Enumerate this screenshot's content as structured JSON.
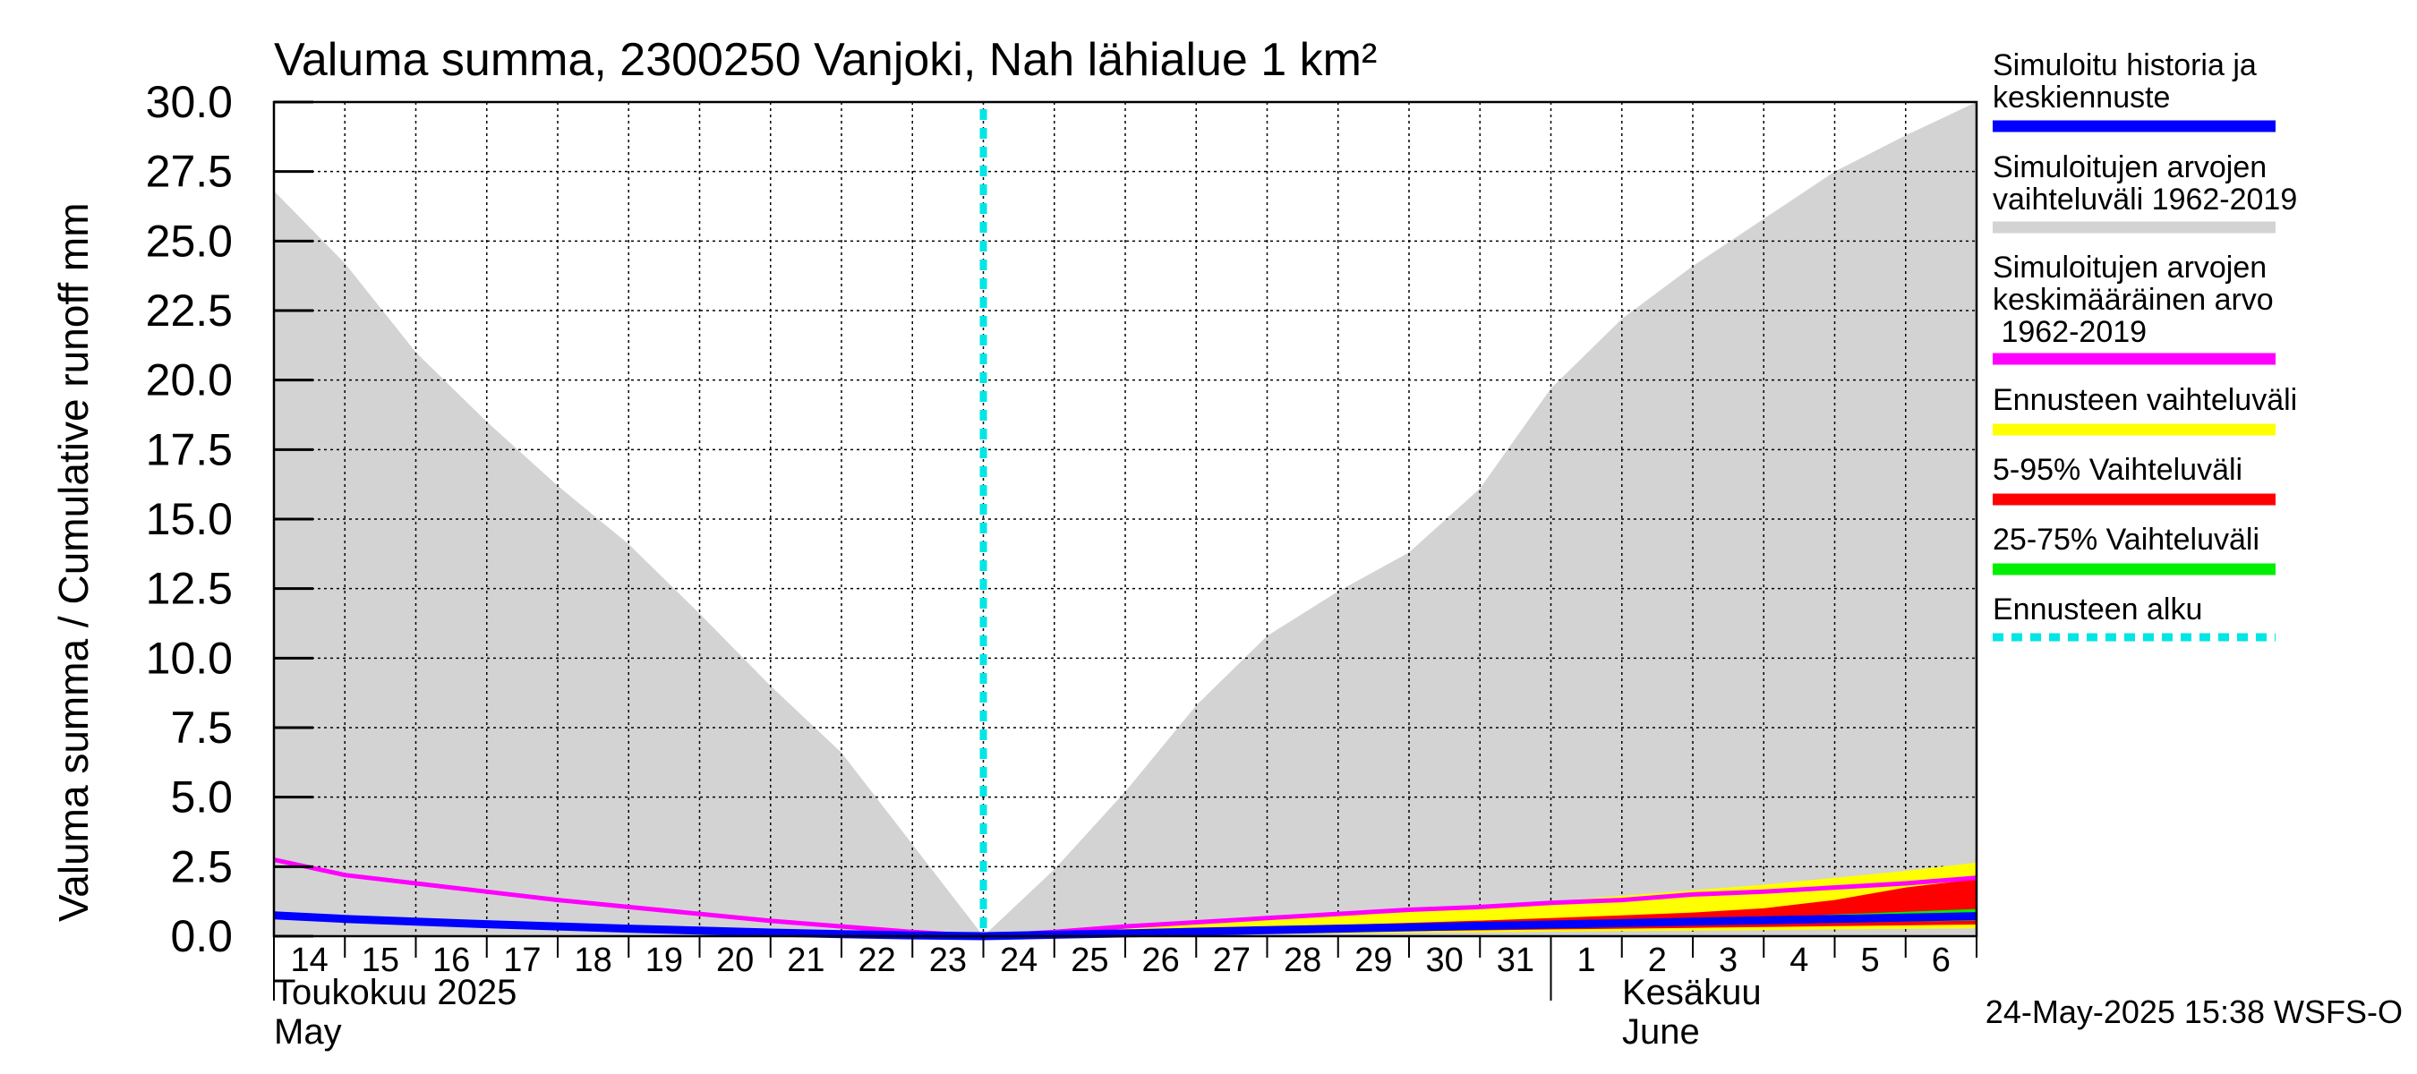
{
  "chart_data": {
    "type": "area",
    "title": "Valuma summa, 2300250 Vanjoki, Nah lähialue 1 km²",
    "ylabel": "Valuma summa / Cumulative runoff    mm",
    "ylim": [
      0,
      30
    ],
    "yticks": [
      "0.0",
      "2.5",
      "5.0",
      "7.5",
      "10.0",
      "12.5",
      "15.0",
      "17.5",
      "20.0",
      "22.5",
      "25.0",
      "27.5",
      "30.0"
    ],
    "ytick_values": [
      0,
      2.5,
      5,
      7.5,
      10,
      12.5,
      15,
      17.5,
      20,
      22.5,
      25,
      27.5,
      30
    ],
    "xlim": [
      0,
      24
    ],
    "xticks": [
      "14",
      "15",
      "16",
      "17",
      "18",
      "19",
      "20",
      "21",
      "22",
      "23",
      "24",
      "25",
      "26",
      "27",
      "28",
      "29",
      "30",
      "31",
      "1",
      "2",
      "3",
      "4",
      "5",
      "6"
    ],
    "month_labels": {
      "may_fi": "Toukokuu  2025",
      "may_en": "May",
      "june_fi": "Kesäkuu",
      "june_en": "June"
    },
    "forecast_start_day": 10,
    "x": [
      0,
      1,
      2,
      3,
      4,
      5,
      6,
      7,
      8,
      9,
      10,
      11,
      12,
      13,
      14,
      15,
      16,
      17,
      18,
      19,
      20,
      21,
      22,
      23,
      24
    ],
    "series": [
      {
        "name": "Simuloitujen arvojen vaihteluväli 1962-2019 (max)",
        "values": [
          26.8,
          24.2,
          21.0,
          18.5,
          16.2,
          14.1,
          11.6,
          9.0,
          6.6,
          3.3,
          0.0,
          2.4,
          5.2,
          8.3,
          10.8,
          12.4,
          13.8,
          16.1,
          19.7,
          22.2,
          24.1,
          25.8,
          27.5,
          28.8,
          30.0
        ]
      },
      {
        "name": "Simuloitujen arvojen vaihteluväli 1962-2019 (min)",
        "values": [
          0.0,
          0.0,
          0.0,
          0.0,
          0.0,
          0.0,
          0.0,
          0.0,
          0.0,
          0.0,
          0.0,
          0.0,
          0.0,
          0.0,
          0.0,
          0.0,
          0.0,
          0.0,
          0.0,
          0.0,
          0.0,
          0.0,
          0.0,
          0.0,
          0.0
        ]
      },
      {
        "name": "Simuloitujen arvojen keskimääräinen arvo 1962-2019",
        "values": [
          2.75,
          2.2,
          1.9,
          1.6,
          1.3,
          1.05,
          0.8,
          0.55,
          0.35,
          0.15,
          0.0,
          0.15,
          0.35,
          0.5,
          0.65,
          0.8,
          0.95,
          1.05,
          1.2,
          1.3,
          1.5,
          1.6,
          1.75,
          1.9,
          2.1
        ]
      },
      {
        "name": "Simuloitu historia ja keskiennuste",
        "values": [
          0.75,
          0.62,
          0.52,
          0.43,
          0.35,
          0.27,
          0.2,
          0.13,
          0.07,
          0.03,
          0.0,
          0.05,
          0.1,
          0.16,
          0.22,
          0.27,
          0.32,
          0.37,
          0.42,
          0.47,
          0.52,
          0.57,
          0.62,
          0.67,
          0.72
        ]
      },
      {
        "name": "Ennusteen vaihteluväli (max)",
        "values": [
          null,
          null,
          null,
          null,
          null,
          null,
          null,
          null,
          null,
          null,
          0.0,
          0.15,
          0.3,
          0.45,
          0.6,
          0.75,
          0.9,
          1.05,
          1.25,
          1.45,
          1.65,
          1.85,
          2.1,
          2.35,
          2.65
        ]
      },
      {
        "name": "Ennusteen vaihteluväli (min)",
        "values": [
          null,
          null,
          null,
          null,
          null,
          null,
          null,
          null,
          null,
          null,
          0.0,
          0.02,
          0.04,
          0.06,
          0.08,
          0.1,
          0.12,
          0.14,
          0.16,
          0.18,
          0.2,
          0.22,
          0.24,
          0.26,
          0.28
        ]
      },
      {
        "name": "5-95% Vaihteluväli (max)",
        "values": [
          null,
          null,
          null,
          null,
          null,
          null,
          null,
          null,
          null,
          null,
          0.0,
          0.08,
          0.16,
          0.24,
          0.32,
          0.4,
          0.48,
          0.56,
          0.65,
          0.75,
          0.85,
          1.0,
          1.3,
          1.75,
          2.05
        ]
      },
      {
        "name": "5-95% Vaihteluväli (min)",
        "values": [
          null,
          null,
          null,
          null,
          null,
          null,
          null,
          null,
          null,
          null,
          0.0,
          0.03,
          0.06,
          0.09,
          0.12,
          0.15,
          0.18,
          0.21,
          0.24,
          0.27,
          0.3,
          0.33,
          0.36,
          0.39,
          0.42
        ]
      },
      {
        "name": "25-75% Vaihteluväli (max)",
        "values": [
          null,
          null,
          null,
          null,
          null,
          null,
          null,
          null,
          null,
          null,
          0.0,
          0.06,
          0.12,
          0.18,
          0.24,
          0.3,
          0.36,
          0.42,
          0.48,
          0.54,
          0.6,
          0.68,
          0.78,
          0.88,
          0.98
        ]
      },
      {
        "name": "25-75% Vaihteluväli (min)",
        "values": [
          null,
          null,
          null,
          null,
          null,
          null,
          null,
          null,
          null,
          null,
          0.0,
          0.04,
          0.08,
          0.12,
          0.16,
          0.2,
          0.24,
          0.28,
          0.32,
          0.36,
          0.4,
          0.44,
          0.48,
          0.52,
          0.56
        ]
      }
    ],
    "legend": [
      {
        "label": "Simuloitu historia ja keskiennuste",
        "color": "#0000ff",
        "style": "solid"
      },
      {
        "label": "Simuloitujen arvojen vaihteluväli 1962-2019",
        "color": "#d3d3d3",
        "style": "solid"
      },
      {
        "label": "Simuloitujen arvojen keskimääräinen arvo 1962-2019",
        "color": "#ff00ff",
        "style": "solid"
      },
      {
        "label": "Ennusteen vaihteluväli",
        "color": "#ffff00",
        "style": "solid"
      },
      {
        "label": "5-95% Vaihteluväli",
        "color": "#ff0000",
        "style": "solid"
      },
      {
        "label": "25-75% Vaihteluväli",
        "color": "#00ee00",
        "style": "solid"
      },
      {
        "label": "Ennusteen alku",
        "color": "#00e5e5",
        "style": "dashed"
      }
    ],
    "legend_lines": [
      [
        "Simuloitu historia ja",
        "keskiennuste"
      ],
      [
        "Simuloitujen arvojen",
        "vaihteluväli 1962-2019"
      ],
      [
        "Simuloitujen arvojen",
        "keskimääräinen arvo",
        "   1962-2019"
      ],
      [
        "Ennusteen vaihteluväli"
      ],
      [
        "5-95% Vaihteluväli"
      ],
      [
        "25-75% Vaihteluväli"
      ],
      [
        "Ennusteen alku"
      ]
    ],
    "legend_position": "right",
    "grid": true,
    "footer": "24-May-2025 15:38 WSFS-O"
  }
}
